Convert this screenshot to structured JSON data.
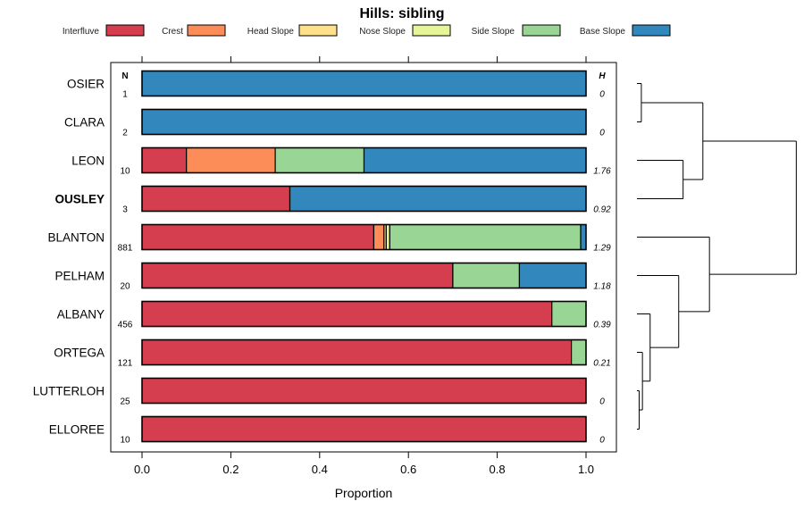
{
  "chart_data": {
    "type": "bar",
    "orientation": "horizontal-stacked",
    "title": "Hills: sibling",
    "xlabel": "Proportion",
    "ylabel": "",
    "xlim": [
      0,
      1
    ],
    "x_ticks": [
      "0.0",
      "0.2",
      "0.4",
      "0.6",
      "0.8",
      "1.0"
    ],
    "x_tick_values": [
      0,
      0.2,
      0.4,
      0.6,
      0.8,
      1.0
    ],
    "n_header": "N",
    "h_header": "H",
    "legend_placement": "top",
    "categories": [
      "OSIER",
      "CLARA",
      "LEON",
      "OUSLEY",
      "BLANTON",
      "PELHAM",
      "ALBANY",
      "ORTEGA",
      "LUTTERLOH",
      "ELLOREE"
    ],
    "highlighted_category": "OUSLEY",
    "n_values": [
      "1",
      "2",
      "10",
      "3",
      "881",
      "20",
      "456",
      "121",
      "25",
      "10"
    ],
    "h_values": [
      "0",
      "0",
      "1.76",
      "0.92",
      "1.29",
      "1.18",
      "0.39",
      "0.21",
      "0",
      "0"
    ],
    "series": [
      {
        "name": "Interfluve",
        "color": "#d53e4f",
        "values": [
          0,
          0,
          0.1,
          0.333,
          0.522,
          0.7,
          0.923,
          0.967,
          1.0,
          1.0
        ]
      },
      {
        "name": "Crest",
        "color": "#fc8d59",
        "values": [
          0,
          0,
          0.2,
          0,
          0.023,
          0,
          0,
          0,
          0,
          0
        ]
      },
      {
        "name": "Head Slope",
        "color": "#fee08b",
        "values": [
          0,
          0,
          0,
          0,
          0.005,
          0,
          0,
          0,
          0,
          0
        ]
      },
      {
        "name": "Nose Slope",
        "color": "#e6f598",
        "values": [
          0,
          0,
          0,
          0,
          0.008,
          0,
          0,
          0,
          0,
          0
        ]
      },
      {
        "name": "Side Slope",
        "color": "#99d594",
        "values": [
          0,
          0,
          0.2,
          0,
          0.43,
          0.15,
          0.077,
          0.033,
          0,
          0
        ]
      },
      {
        "name": "Base Slope",
        "color": "#3288bd",
        "values": [
          1.0,
          1.0,
          0.5,
          0.667,
          0.012,
          0.15,
          0,
          0,
          0,
          0
        ]
      }
    ],
    "dendrogram": {
      "leaf_order": [
        "OSIER",
        "CLARA",
        "LEON",
        "OUSLEY",
        "BLANTON",
        "PELHAM",
        "ALBANY",
        "ORTEGA",
        "LUTTERLOH",
        "ELLOREE"
      ],
      "merges": [
        {
          "a": "LUTTERLOH",
          "b": "ELLOREE",
          "height": 0.02
        },
        {
          "a": "ORTEGA",
          "b": "LUTTERLOH+ELLOREE",
          "height": 0.05
        },
        {
          "a": "OSIER",
          "b": "CLARA",
          "height": 0.04
        },
        {
          "a": "ALBANY",
          "b": "ORTEGA+LUTTERLOH+ELLOREE",
          "height": 0.12
        },
        {
          "a": "LEON",
          "b": "OUSLEY",
          "height": 0.42
        },
        {
          "a": "PELHAM",
          "b": "ALBANY+ORTEGA+LUTTERLOH+ELLOREE",
          "height": 0.38
        },
        {
          "a": "BLANTON",
          "b": "PELHAM+ALBANY+ORTEGA+LUTTERLOH+ELLOREE",
          "height": 0.66
        },
        {
          "a": "OSIER+CLARA",
          "b": "LEON+OUSLEY",
          "height": 0.6
        },
        {
          "a": "OSIER+CLARA+LEON+OUSLEY",
          "b": "BLANTON+PELHAM+ALBANY+ORTEGA+LUTTERLOH+ELLOREE",
          "height": 1.45
        }
      ]
    }
  }
}
